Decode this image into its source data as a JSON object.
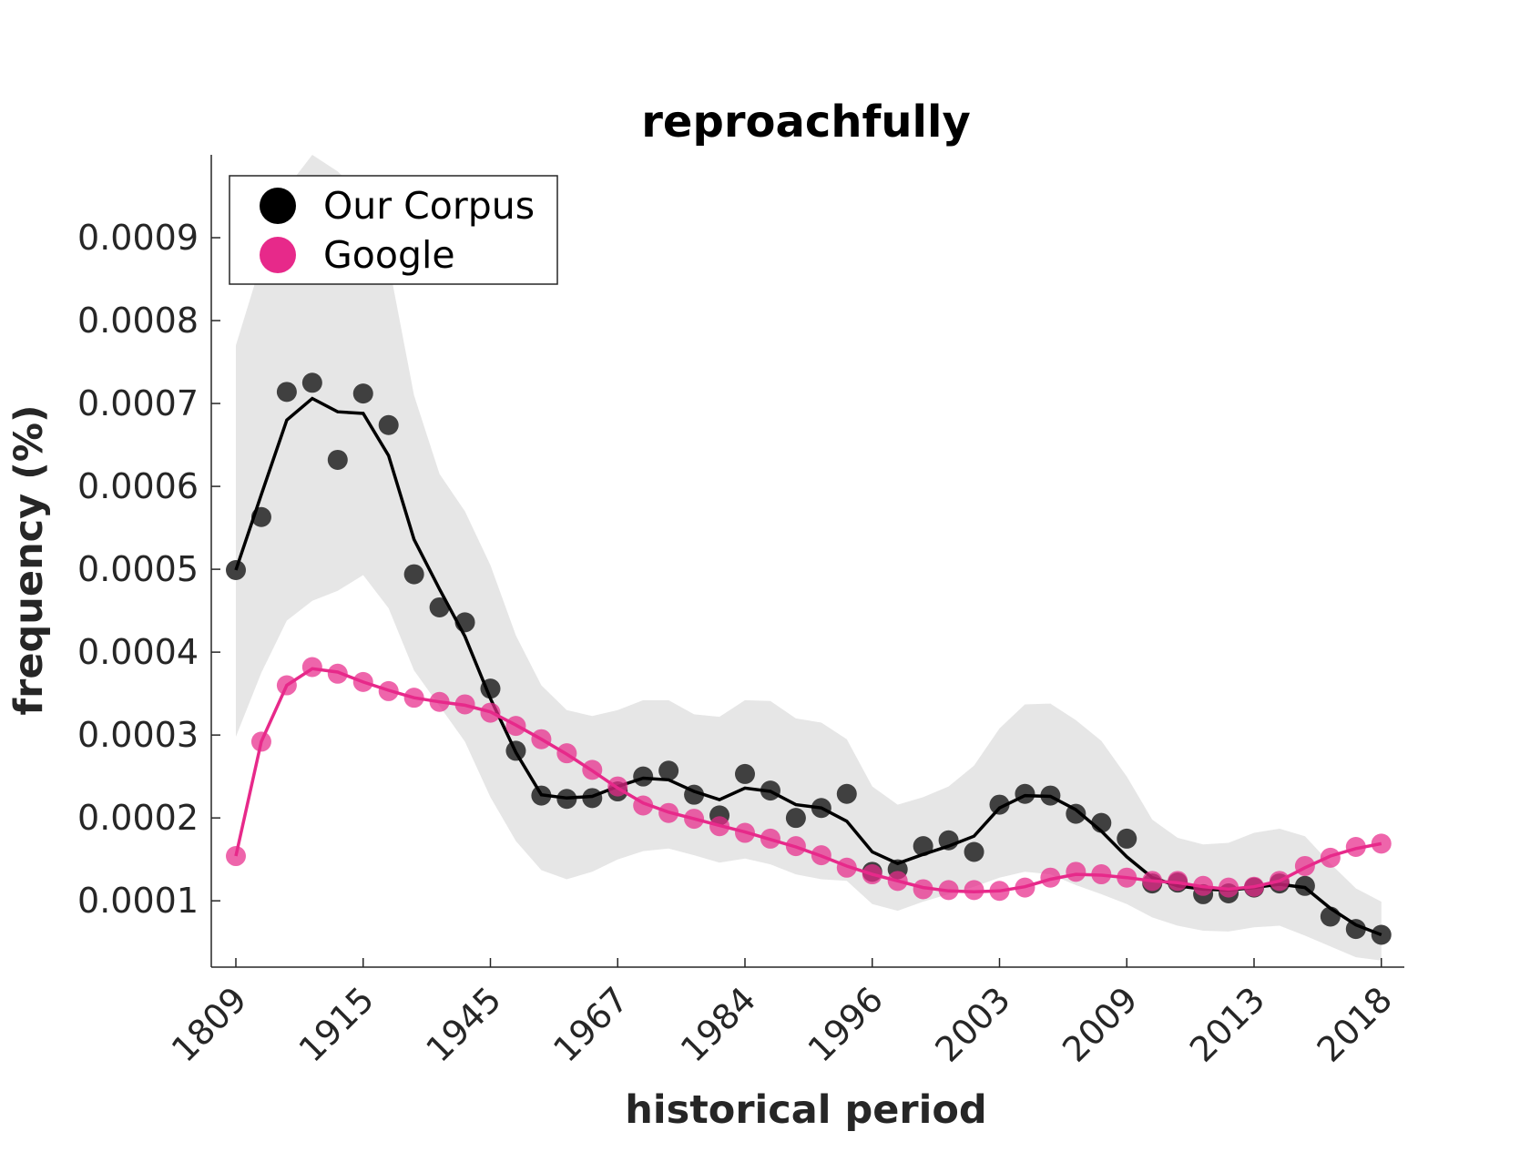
{
  "chart_data": {
    "type": "scatter",
    "title": "reproachfully",
    "xlabel": "historical period",
    "ylabel": "frequency (%)",
    "x_tick_labels": [
      "1809",
      "1915",
      "1945",
      "1967",
      "1984",
      "1996",
      "2003",
      "2009",
      "2013",
      "2018"
    ],
    "y_ticks": [
      0.0001,
      0.0002,
      0.0003,
      0.0004,
      0.0005,
      0.0006,
      0.0007,
      0.0008,
      0.0009
    ],
    "y_tick_labels": [
      "0.0001",
      "0.0002",
      "0.0003",
      "0.0004",
      "0.0005",
      "0.0006",
      "0.0007",
      "0.0008",
      "0.0009"
    ],
    "ylim": [
      2e-05,
      0.001
    ],
    "grid": false,
    "legend_position": "top-left",
    "x_index": [
      0,
      1,
      2,
      3,
      4,
      5,
      6,
      7,
      8,
      9,
      10,
      11,
      12,
      13,
      14,
      15,
      16,
      17,
      18,
      19,
      20,
      21,
      22,
      23,
      24,
      25,
      26,
      27,
      28,
      29,
      30,
      31,
      32,
      33,
      34,
      35,
      36,
      37,
      38,
      39,
      40,
      41,
      42,
      43,
      44,
      45
    ],
    "series": [
      {
        "name": "Our Corpus",
        "color": "#000000",
        "point_color": "#404040",
        "points": [
          0.000499,
          0.000563,
          0.000714,
          0.000725,
          0.000632,
          0.000712,
          0.000674,
          0.000494,
          0.000454,
          0.000436,
          0.000356,
          0.000281,
          0.000227,
          0.000223,
          0.000224,
          0.000232,
          0.00025,
          0.000257,
          0.000228,
          0.000203,
          0.000253,
          0.000233,
          0.0002,
          0.000212,
          0.000229,
          0.000135,
          0.000138,
          0.000166,
          0.000173,
          0.000159,
          0.000216,
          0.000229,
          0.000227,
          0.000205,
          0.000194,
          0.000175,
          0.000121,
          0.000122,
          0.000108,
          0.000109,
          0.000116,
          0.000121,
          0.000118,
          8.1e-05,
          6.6e-05,
          5.9e-05
        ],
        "smooth": [
          0.000499,
          0.00059,
          0.00068,
          0.000706,
          0.00069,
          0.000688,
          0.000637,
          0.000536,
          0.000476,
          0.000419,
          0.000344,
          0.000279,
          0.000228,
          0.000224,
          0.000226,
          0.000238,
          0.000248,
          0.000246,
          0.000232,
          0.000222,
          0.000236,
          0.000232,
          0.000216,
          0.000212,
          0.000196,
          0.000159,
          0.000145,
          0.000156,
          0.000166,
          0.000178,
          0.000212,
          0.000227,
          0.000226,
          0.00021,
          0.000184,
          0.000153,
          0.000128,
          0.000118,
          0.000114,
          0.000113,
          0.000116,
          0.00012,
          0.000116,
          9.1e-05,
          7.1e-05,
          5.9e-05
        ],
        "band_upper": [
          0.00077,
          0.00087,
          0.00096,
          0.001,
          0.00098,
          0.00095,
          0.00087,
          0.00071,
          0.000615,
          0.00057,
          0.000505,
          0.00042,
          0.00036,
          0.00033,
          0.000323,
          0.00033,
          0.000342,
          0.000342,
          0.000325,
          0.000322,
          0.000342,
          0.000341,
          0.00032,
          0.000315,
          0.000295,
          0.000238,
          0.000216,
          0.000225,
          0.000238,
          0.000263,
          0.000308,
          0.000337,
          0.000338,
          0.000318,
          0.000293,
          0.00025,
          0.000198,
          0.000176,
          0.000168,
          0.00017,
          0.000182,
          0.000187,
          0.000178,
          0.000145,
          0.000115,
          9.9e-05
        ],
        "band_lower": [
          0.000298,
          0.000375,
          0.000438,
          0.000462,
          0.000474,
          0.000493,
          0.000453,
          0.000378,
          0.000335,
          0.000292,
          0.000225,
          0.000172,
          0.000137,
          0.000126,
          0.000135,
          0.00015,
          0.00016,
          0.000163,
          0.000155,
          0.000146,
          0.000151,
          0.000144,
          0.000132,
          0.000126,
          0.000124,
          9.6e-05,
          8.8e-05,
          9.9e-05,
          0.000108,
          0.000117,
          0.000128,
          0.000135,
          0.000132,
          0.000119,
          0.000108,
          9.6e-05,
          8e-05,
          7e-05,
          6.4e-05,
          6.3e-05,
          6.8e-05,
          7e-05,
          5.8e-05,
          4.5e-05,
          3.2e-05,
          2.8e-05
        ]
      },
      {
        "name": "Google",
        "color": "#e7298a",
        "points": [
          0.000154,
          0.000292,
          0.00036,
          0.000382,
          0.000374,
          0.000364,
          0.000353,
          0.000345,
          0.00034,
          0.000337,
          0.000327,
          0.000311,
          0.000295,
          0.000278,
          0.000258,
          0.000238,
          0.000215,
          0.000206,
          0.000199,
          0.00019,
          0.000182,
          0.000175,
          0.000166,
          0.000155,
          0.00014,
          0.000132,
          0.000124,
          0.000114,
          0.000113,
          0.000113,
          0.000112,
          0.000116,
          0.000128,
          0.000135,
          0.000132,
          0.000128,
          0.000124,
          0.000124,
          0.000118,
          0.000116,
          0.000117,
          0.000124,
          0.000142,
          0.000152,
          0.000165,
          0.000169
        ],
        "smooth": [
          0.000154,
          0.000292,
          0.00036,
          0.00038,
          0.000376,
          0.000364,
          0.000354,
          0.000345,
          0.00034,
          0.000336,
          0.000328,
          0.000312,
          0.000295,
          0.000277,
          0.000257,
          0.000236,
          0.000218,
          0.000207,
          0.000199,
          0.000191,
          0.000183,
          0.000174,
          0.000165,
          0.000154,
          0.000142,
          0.000132,
          0.000124,
          0.000116,
          0.000112,
          0.000111,
          0.000112,
          0.000117,
          0.000126,
          0.000132,
          0.000131,
          0.000128,
          0.000124,
          0.000122,
          0.000117,
          0.000114,
          0.000117,
          0.000124,
          0.00014,
          0.000154,
          0.000163,
          0.000169
        ]
      }
    ]
  }
}
